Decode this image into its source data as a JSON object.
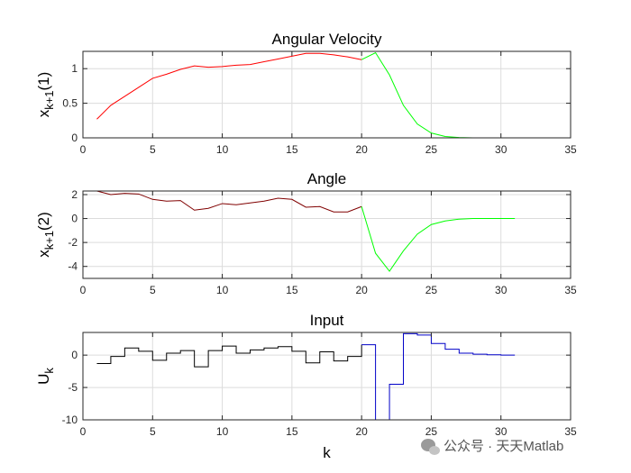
{
  "chart_data": [
    {
      "type": "line",
      "title": "Angular Velocity",
      "ylabel_main": "x",
      "ylabel_sub": "k+1",
      "ylabel_tail": "(1)",
      "xlabel": "",
      "xlim": [
        0,
        35
      ],
      "ylim": [
        0,
        1.25
      ],
      "xticks": [
        0,
        5,
        10,
        15,
        20,
        25,
        30,
        35
      ],
      "yticks": [
        0,
        0.5,
        1
      ],
      "ytick_labels": [
        "0",
        "0.5",
        "1"
      ],
      "grid": true,
      "series": [
        {
          "color": "#ff0000",
          "step": false,
          "x": [
            1,
            2,
            3,
            4,
            5,
            6,
            7,
            8,
            9,
            10,
            11,
            12,
            13,
            14,
            15,
            16,
            17,
            18,
            19,
            20
          ],
          "y": [
            0.27,
            0.47,
            0.6,
            0.73,
            0.86,
            0.92,
            0.99,
            1.04,
            1.02,
            1.03,
            1.05,
            1.06,
            1.1,
            1.14,
            1.18,
            1.22,
            1.22,
            1.2,
            1.17,
            1.13
          ]
        },
        {
          "color": "#00ff00",
          "step": false,
          "x": [
            20,
            21,
            22,
            23,
            24,
            25,
            26,
            27,
            28,
            29,
            30,
            31
          ],
          "y": [
            1.13,
            1.23,
            0.91,
            0.47,
            0.2,
            0.07,
            0.02,
            0.005,
            0,
            0,
            0,
            0
          ]
        }
      ]
    },
    {
      "type": "line",
      "title": "Angle",
      "ylabel_main": "x",
      "ylabel_sub": "k+1",
      "ylabel_tail": "(2)",
      "xlabel": "",
      "xlim": [
        0,
        35
      ],
      "ylim": [
        -5,
        2.3
      ],
      "xticks": [
        0,
        5,
        10,
        15,
        20,
        25,
        30,
        35
      ],
      "yticks": [
        -4,
        -2,
        0,
        2
      ],
      "ytick_labels": [
        "-4",
        "-2",
        "0",
        "2"
      ],
      "grid": true,
      "series": [
        {
          "color": "#800000",
          "step": false,
          "x": [
            1,
            2,
            3,
            4,
            5,
            6,
            7,
            8,
            9,
            10,
            11,
            12,
            13,
            14,
            15,
            16,
            17,
            18,
            19,
            20
          ],
          "y": [
            2.3,
            2.0,
            2.1,
            2.05,
            1.6,
            1.45,
            1.5,
            0.7,
            0.85,
            1.25,
            1.15,
            1.3,
            1.45,
            1.7,
            1.6,
            0.95,
            1.0,
            0.55,
            0.55,
            1.0
          ]
        },
        {
          "color": "#00ff00",
          "step": false,
          "x": [
            20,
            21,
            22,
            23,
            24,
            25,
            26,
            27,
            28,
            29,
            30,
            31
          ],
          "y": [
            1.0,
            -2.9,
            -4.4,
            -2.7,
            -1.3,
            -0.5,
            -0.2,
            -0.05,
            0,
            0,
            0,
            0
          ]
        }
      ]
    },
    {
      "type": "line",
      "title": "Input",
      "ylabel_main": "U",
      "ylabel_sub": "k",
      "ylabel_tail": "",
      "xlabel": "k",
      "xlim": [
        0,
        35
      ],
      "ylim": [
        -10,
        3.5
      ],
      "xticks": [
        0,
        5,
        10,
        15,
        20,
        25,
        30,
        35
      ],
      "yticks": [
        -10,
        -5,
        0
      ],
      "ytick_labels": [
        "-10",
        "-5",
        "0"
      ],
      "grid": true,
      "series": [
        {
          "color": "#000000",
          "step": true,
          "x": [
            1,
            2,
            3,
            4,
            5,
            6,
            7,
            8,
            9,
            10,
            11,
            12,
            13,
            14,
            15,
            16,
            17,
            18,
            19,
            20
          ],
          "y": [
            -1.3,
            -0.2,
            1.1,
            0.6,
            -0.8,
            0.3,
            0.7,
            -1.8,
            0.7,
            1.4,
            0.3,
            0.8,
            1.1,
            1.3,
            0.6,
            -1.2,
            0.5,
            -0.9,
            -0.2,
            1.6
          ]
        },
        {
          "color": "#0000c8",
          "step": true,
          "x": [
            20,
            21,
            22,
            23,
            24,
            25,
            26,
            27,
            28,
            29,
            30,
            31
          ],
          "y": [
            1.6,
            -10,
            -4.5,
            3.3,
            3.1,
            1.8,
            0.9,
            0.3,
            0.15,
            0.05,
            0,
            0
          ]
        }
      ]
    }
  ],
  "watermark": {
    "text": "公众号 · 天天Matlab",
    "icon": "wechat-icon"
  }
}
